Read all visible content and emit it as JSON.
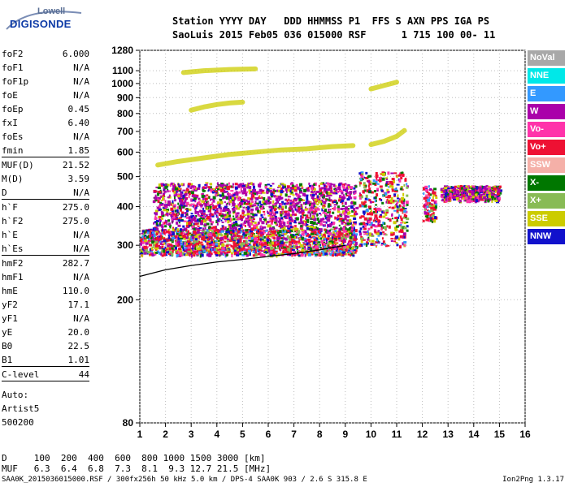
{
  "header": {
    "line1": "Station YYYY DAY   DDD HHMMSS P1  FFS S AXN PPS IGA PS",
    "line2": "SaoLuis 2015 Feb05 036 015000 RSF      1 715 100 00- 11"
  },
  "logo": {
    "top": "Lowell",
    "bottom": "DIGISONDE"
  },
  "params_groups": [
    [
      {
        "key": "foF2",
        "value": "6.000"
      },
      {
        "key": "foF1",
        "value": "N/A"
      },
      {
        "key": "foF1p",
        "value": "N/A"
      },
      {
        "key": "foE",
        "value": "N/A"
      },
      {
        "key": "foEp",
        "value": "0.45"
      },
      {
        "key": "fxI",
        "value": "6.40"
      },
      {
        "key": "foEs",
        "value": "N/A"
      },
      {
        "key": "fmin",
        "value": "1.85"
      }
    ],
    [
      {
        "key": "MUF(D)",
        "value": "21.52"
      },
      {
        "key": "M(D)",
        "value": "3.59"
      },
      {
        "key": "D",
        "value": "N/A"
      }
    ],
    [
      {
        "key": "h`F",
        "value": "275.0"
      },
      {
        "key": "h`F2",
        "value": "275.0"
      },
      {
        "key": "h`E",
        "value": "N/A"
      },
      {
        "key": "h`Es",
        "value": "N/A"
      }
    ],
    [
      {
        "key": "hmF2",
        "value": "282.7"
      },
      {
        "key": "hmF1",
        "value": "N/A"
      },
      {
        "key": "hmE",
        "value": "110.0"
      },
      {
        "key": "yF2",
        "value": "17.1"
      },
      {
        "key": "yF1",
        "value": "N/A"
      },
      {
        "key": "yE",
        "value": "20.0"
      },
      {
        "key": "B0",
        "value": "22.5"
      },
      {
        "key": "B1",
        "value": "1.01"
      }
    ],
    [
      {
        "key": "C-level",
        "value": "44"
      }
    ]
  ],
  "auto": [
    "Auto:",
    "Artist5",
    "500200"
  ],
  "muf_table": {
    "row1": "D     100  200  400  600  800 1000 1500 3000 [km]",
    "row2": "MUF   6.3  6.4  6.8  7.3  8.1  9.3 12.7 21.5 [MHz]"
  },
  "footer": "SAA0K_2015036015000.RSF / 300fx256h 50 kHz 5.0 km / DPS-4 SAA0K 903 / 2.6 S 315.8 E",
  "footer_right": "Ion2Png 1.3.17",
  "legend": [
    {
      "label": "NoVal",
      "color": "#a8a8a8"
    },
    {
      "label": "NNE",
      "color": "#00e8e8"
    },
    {
      "label": "E",
      "color": "#3399ff"
    },
    {
      "label": "W",
      "color": "#aa00aa"
    },
    {
      "label": "Vo-",
      "color": "#ff33aa"
    },
    {
      "label": "Vo+",
      "color": "#ee1133"
    },
    {
      "label": "SSW",
      "color": "#f5b0a8"
    },
    {
      "label": "X-",
      "color": "#007700"
    },
    {
      "label": "X+",
      "color": "#88bb55"
    },
    {
      "label": "SSE",
      "color": "#cccc00"
    },
    {
      "label": "NNW",
      "color": "#1111cc"
    }
  ],
  "chart_data": {
    "type": "scatter",
    "xlim": [
      1,
      16
    ],
    "ylim": [
      80,
      1280
    ],
    "y_scale": "log",
    "grid": true,
    "x_ticks": [
      1,
      2,
      3,
      4,
      5,
      6,
      7,
      8,
      9,
      10,
      11,
      12,
      13,
      14,
      15,
      16
    ],
    "y_ticks": [
      80,
      200,
      300,
      400,
      500,
      600,
      700,
      800,
      900,
      1000,
      1100,
      1280
    ],
    "profile_curve": {
      "x": [
        1.0,
        2.0,
        3.0,
        4.0,
        5.0,
        6.0,
        7.0,
        8.0,
        9.0
      ],
      "y": [
        238,
        250,
        258,
        265,
        270,
        276,
        282,
        290,
        300
      ]
    },
    "traces": [
      {
        "name": "SSE",
        "x": [
          1.7,
          2.5,
          3.5,
          4.5,
          5.5,
          6.5,
          7.5,
          8.5,
          9.3
        ],
        "y": [
          545,
          560,
          575,
          590,
          600,
          610,
          615,
          625,
          630
        ]
      },
      {
        "name": "SSE",
        "x": [
          10.0,
          10.5,
          11.0,
          11.3
        ],
        "y": [
          635,
          650,
          675,
          705
        ]
      },
      {
        "name": "SSE",
        "x": [
          3.0,
          3.5,
          4.0,
          4.5,
          5.0
        ],
        "y": [
          820,
          840,
          855,
          865,
          870
        ]
      },
      {
        "name": "SSE",
        "x": [
          2.7,
          3.5,
          4.5,
          5.5
        ],
        "y": [
          1085,
          1100,
          1110,
          1115
        ]
      },
      {
        "name": "SSE",
        "x": [
          10.0,
          10.5,
          11.0
        ],
        "y": [
          960,
          985,
          1010
        ]
      }
    ],
    "echo_regions": [
      {
        "xmin": 1.0,
        "xmax": 9.4,
        "ymin": 280,
        "ymax": 340,
        "dominant": "Vo+"
      },
      {
        "xmin": 1.5,
        "xmax": 9.4,
        "ymin": 340,
        "ymax": 480,
        "dominant": "W"
      },
      {
        "xmin": 9.5,
        "xmax": 11.4,
        "ymin": 300,
        "ymax": 520,
        "dominant": "Vo+"
      },
      {
        "xmin": 12.0,
        "xmax": 12.5,
        "ymin": 360,
        "ymax": 470,
        "dominant": "Vo+"
      },
      {
        "xmin": 12.7,
        "xmax": 15.0,
        "ymin": 420,
        "ymax": 470,
        "dominant": "W"
      }
    ]
  }
}
